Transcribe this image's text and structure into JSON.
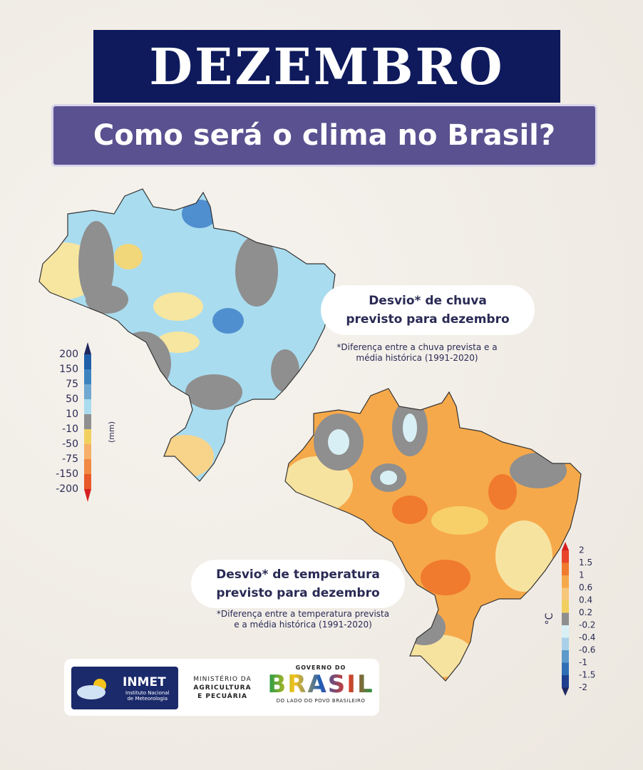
{
  "header": {
    "title": "DEZEMBRO",
    "subtitle": "Como será o clima no Brasil?"
  },
  "rain": {
    "title_line1": "Desvio* de chuva",
    "title_line2": "previsto para dezembro",
    "note_line1": "*Diferença entre a chuva prevista e a",
    "note_line2": "média histórica (1991-2020)",
    "unit": "(mm)",
    "ticks": [
      200,
      150,
      75,
      50,
      10,
      -10,
      -50,
      -75,
      -150,
      -200
    ]
  },
  "temperature": {
    "title_line1": "Desvio* de temperatura",
    "title_line2": "previsto para dezembro",
    "note_line1": "*Diferença entre a temperatura prevista",
    "note_line2": "e a média histórica (1991-2020)",
    "unit": "°C",
    "ticks": [
      2,
      1.5,
      1,
      0.6,
      0.4,
      0.2,
      -0.2,
      -0.4,
      -0.6,
      -1,
      -1.5,
      -2
    ]
  },
  "footer": {
    "inmet": "INMET",
    "inmet_sub1": "Instituto Nacional",
    "inmet_sub2": "de Meteorologia",
    "ministry1": "MINISTÉRIO DA",
    "ministry2": "AGRICULTURA",
    "ministry3": "E PECUÁRIA",
    "gov_top": "GOVERNO DO",
    "gov_main": "BRASIL",
    "gov_bottom": "DO LADO DO POVO BRASILEIRO"
  }
}
